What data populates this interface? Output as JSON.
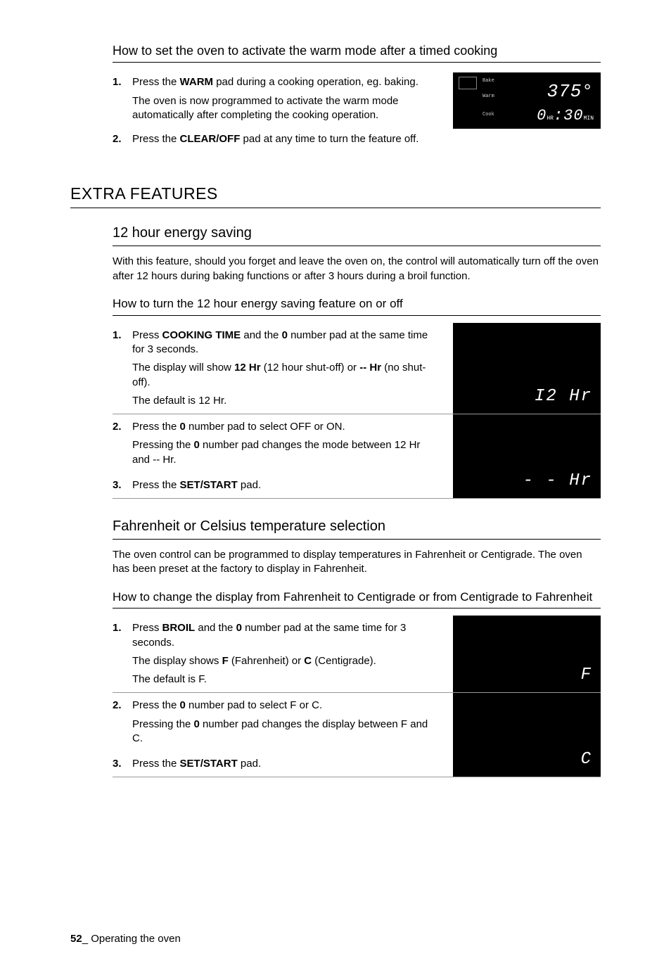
{
  "title_warm": "How to set the oven to activate the warm mode after a timed cooking",
  "warm": {
    "step1_a": "Press the ",
    "step1_b": "WARM",
    "step1_c": " pad during a cooking operation, eg. baking.",
    "step1_p2": "The oven is now programmed to activate the warm mode automatically after completing the cooking operation.",
    "step2_a": "Press the ",
    "step2_b": "CLEAR/OFF",
    "step2_c": " pad at any time to turn the feature off.",
    "display": {
      "bake": "Bake",
      "warm": "Warm",
      "cook": "Cook",
      "temp": "375°",
      "timer_hr": "0",
      "timer_hr_u": "HR",
      "timer_min": ":30",
      "timer_min_u": "MIN"
    }
  },
  "h1_extra": "EXTRA FEATURES",
  "h2_12hr": "12 hour energy saving",
  "p_12hr": "With this feature, should you forget and leave the oven on, the control will automatically turn off the oven after 12 hours during baking functions or after 3 hours during a broil function.",
  "h3_12hr_how": "How to turn the 12 hour energy saving feature on or off",
  "twelve": {
    "s1_a": "Press ",
    "s1_b": "COOKING TIME",
    "s1_c": " and the ",
    "s1_d": "0",
    "s1_e": " number pad at the same time for 3 seconds.",
    "s1_p2a": "The display will show ",
    "s1_p2b": "12 Hr",
    "s1_p2c": " (12 hour shut-off) or ",
    "s1_p2d": "-- Hr",
    "s1_p2e": " (no shut-off).",
    "s1_p3": "The default is 12 Hr.",
    "s2_a": "Press the ",
    "s2_b": "0",
    "s2_c": " number pad to select OFF or ON.",
    "s2_p2a": "Pressing the ",
    "s2_p2b": "0",
    "s2_p2c": " number pad changes the mode between 12 Hr and -- Hr.",
    "s3_a": "Press the ",
    "s3_b": "SET/START",
    "s3_c": " pad.",
    "disp1": "I2 Hr",
    "disp2": "- - Hr"
  },
  "h2_fc": "Fahrenheit or Celsius temperature selection",
  "p_fc": "The oven control can be programmed to display temperatures in Fahrenheit or Centigrade. The oven has been preset at the factory to display in Fahrenheit.",
  "h3_fc_how": "How to change the display from Fahrenheit to Centigrade or from Centigrade to Fahrenheit",
  "fc": {
    "s1_a": "Press ",
    "s1_b": "BROIL",
    "s1_c": " and the ",
    "s1_d": "0",
    "s1_e": " number pad at the same time for 3 seconds.",
    "s1_p2a": "The display shows ",
    "s1_p2b": "F",
    "s1_p2c": " (Fahrenheit) or ",
    "s1_p2d": "C",
    "s1_p2e": " (Centigrade).",
    "s1_p3": "The default is F.",
    "s2_a": "Press the ",
    "s2_b": "0",
    "s2_c": " number pad to select F or C.",
    "s2_p2a": "Pressing the ",
    "s2_p2b": "0",
    "s2_p2c": " number pad changes the display between F and C.",
    "s3_a": "Press the ",
    "s3_b": "SET/START",
    "s3_c": " pad.",
    "disp1": "F",
    "disp2": "C"
  },
  "footer_page": "52",
  "footer_sep": "_ ",
  "footer_text": "Operating the oven"
}
